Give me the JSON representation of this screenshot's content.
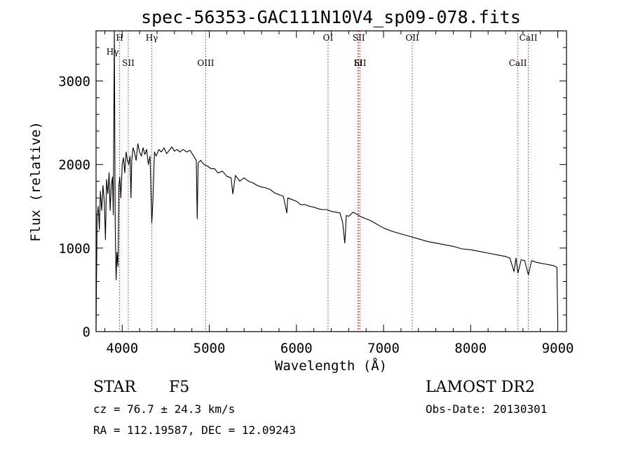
{
  "chart_data": {
    "type": "line",
    "title": "spec-56353-GAC111N10V4_sp09-078.fits",
    "xlabel": "Wavelength (Å)",
    "ylabel": "Flux (relative)",
    "xlim": [
      3700,
      9100
    ],
    "ylim": [
      0,
      3600
    ],
    "xticks": [
      4000,
      5000,
      6000,
      7000,
      8000,
      9000
    ],
    "yticks": [
      0,
      1000,
      2000,
      3000
    ],
    "grid": false,
    "series": [
      {
        "x": [
          3700,
          3712,
          3725,
          3738,
          3750,
          3765,
          3780,
          3795,
          3808,
          3820,
          3835,
          3850,
          3862,
          3875,
          3888,
          3898,
          3910,
          3920,
          3930,
          3940,
          3952,
          3962,
          3972,
          3985,
          4000,
          4015,
          4030,
          4045,
          4060,
          4075,
          4090,
          4101,
          4110,
          4125,
          4140,
          4160,
          4180,
          4200,
          4220,
          4240,
          4260,
          4280,
          4300,
          4320,
          4340,
          4352,
          4370,
          4390,
          4420,
          4450,
          4480,
          4510,
          4540,
          4570,
          4600,
          4630,
          4660,
          4700,
          4740,
          4780,
          4820,
          4850,
          4861,
          4872,
          4900,
          4940,
          4980,
          5020,
          5060,
          5100,
          5150,
          5200,
          5250,
          5270,
          5300,
          5350,
          5400,
          5450,
          5500,
          5550,
          5600,
          5650,
          5700,
          5750,
          5800,
          5850,
          5890,
          5900,
          5950,
          6000,
          6050,
          6100,
          6150,
          6200,
          6250,
          6300,
          6350,
          6400,
          6450,
          6500,
          6530,
          6555,
          6563,
          6572,
          6600,
          6650,
          6700,
          6750,
          6800,
          6850,
          6900,
          6950,
          7000,
          7100,
          7200,
          7300,
          7400,
          7500,
          7600,
          7700,
          7800,
          7900,
          8000,
          8100,
          8200,
          8300,
          8400,
          8450,
          8498,
          8520,
          8542,
          8580,
          8620,
          8662,
          8700,
          8750,
          8800,
          8850,
          8900,
          8950,
          8990,
          9000
        ],
        "y": [
          30,
          1380,
          1500,
          1220,
          1680,
          1450,
          1750,
          1550,
          1100,
          1820,
          1650,
          1900,
          1450,
          1750,
          1850,
          1400,
          3600,
          1300,
          620,
          950,
          780,
          1750,
          1850,
          1600,
          2000,
          2080,
          1900,
          2150,
          2050,
          2000,
          2100,
          1600,
          2050,
          2200,
          2150,
          2050,
          2250,
          2150,
          2100,
          2200,
          2120,
          2180,
          2000,
          2100,
          1300,
          1550,
          2150,
          2100,
          2180,
          2150,
          2200,
          2130,
          2170,
          2210,
          2160,
          2180,
          2150,
          2180,
          2150,
          2170,
          2100,
          2050,
          1350,
          2020,
          2050,
          2000,
          1980,
          1950,
          1950,
          1900,
          1920,
          1860,
          1840,
          1650,
          1870,
          1800,
          1840,
          1800,
          1780,
          1750,
          1730,
          1720,
          1700,
          1660,
          1640,
          1620,
          1420,
          1600,
          1580,
          1560,
          1520,
          1520,
          1500,
          1490,
          1470,
          1460,
          1460,
          1440,
          1430,
          1420,
          1310,
          1060,
          1200,
          1390,
          1380,
          1430,
          1400,
          1370,
          1350,
          1330,
          1300,
          1270,
          1240,
          1200,
          1170,
          1140,
          1110,
          1080,
          1060,
          1040,
          1020,
          990,
          980,
          960,
          940,
          920,
          900,
          880,
          720,
          880,
          700,
          860,
          850,
          680,
          850,
          830,
          820,
          810,
          800,
          790,
          770,
          80
        ]
      }
    ],
    "lines": [
      {
        "x": 3970,
        "label": "H"
      },
      {
        "x": 4070,
        "label": "SII"
      },
      {
        "x": 4340,
        "label": "Hγ"
      },
      {
        "x": 4959,
        "label": "OIII"
      },
      {
        "x": 6363,
        "label": "OI"
      },
      {
        "x": 6707,
        "label": "Li"
      },
      {
        "x": 6716,
        "label": "SII"
      },
      {
        "x": 6731,
        "label": "SII"
      },
      {
        "x": 7330,
        "label": "OII"
      },
      {
        "x": 8542,
        "label": "CaII"
      },
      {
        "x": 8662,
        "label": "CaII"
      }
    ],
    "extra_labels": [
      {
        "x": 3890,
        "label": "Hγ"
      }
    ]
  },
  "info": {
    "class_label": "STAR",
    "subclass": "F5",
    "survey": "LAMOST DR2",
    "cz_text": "cz = 76.7 ± 24.3 km/s",
    "obs_date_text": "Obs-Date: 20130301",
    "radec_text": "RA = 112.19587, DEC =  12.09243"
  }
}
